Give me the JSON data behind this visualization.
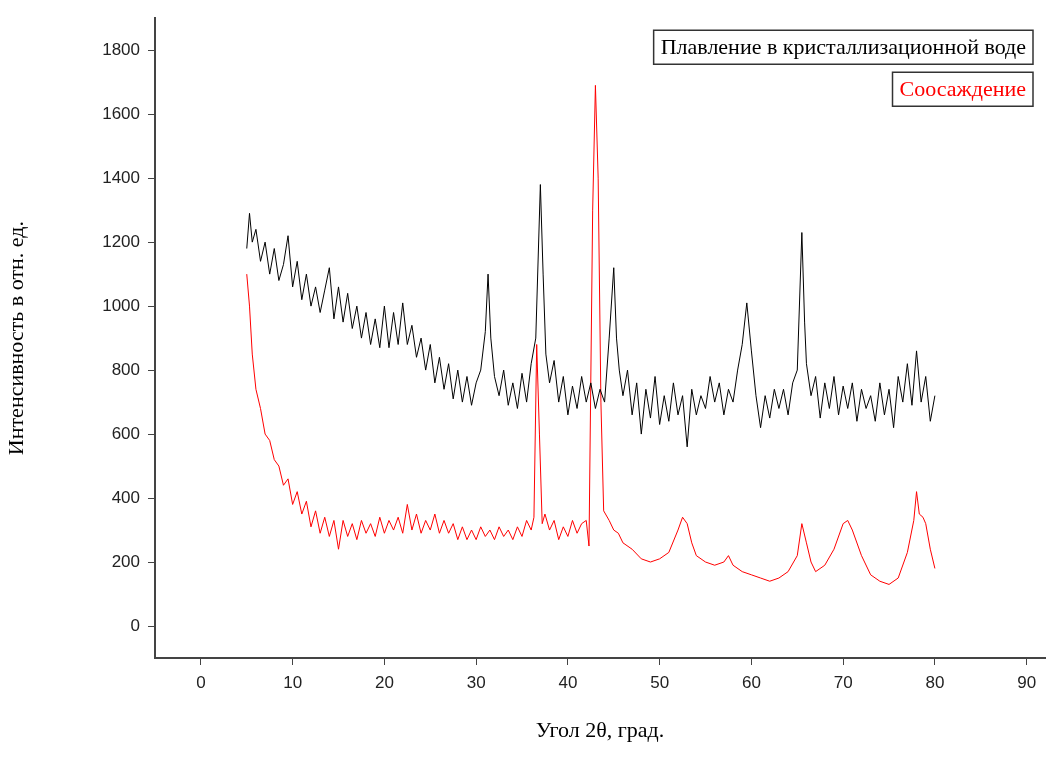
{
  "chart_data": {
    "type": "line",
    "xlabel": "Угол 2θ, град.",
    "ylabel": "Интенсивность в отн. ед.",
    "xlim": [
      -5,
      92
    ],
    "ylim": [
      -100,
      1900
    ],
    "xticks": [
      0,
      10,
      20,
      30,
      40,
      50,
      60,
      70,
      80,
      90
    ],
    "yticks": [
      0,
      200,
      400,
      600,
      800,
      1000,
      1200,
      1400,
      1600,
      1800
    ],
    "grid": false,
    "legend": "top right",
    "marker": "none",
    "line_style": "solid",
    "series": [
      {
        "name": "Плавление в кристаллизационной воде",
        "color": "#000000",
        "x": [
          5,
          5.3,
          5.6,
          6,
          6.5,
          7,
          7.5,
          8,
          8.5,
          9,
          9.5,
          10,
          10.5,
          11,
          11.5,
          12,
          12.5,
          13,
          13.5,
          14,
          14.5,
          15,
          15.5,
          16,
          16.5,
          17,
          17.5,
          18,
          18.5,
          19,
          19.5,
          20,
          20.5,
          21,
          21.5,
          22,
          22.5,
          23,
          23.5,
          24,
          24.5,
          25,
          25.5,
          26,
          26.5,
          27,
          27.5,
          28,
          28.5,
          29,
          29.5,
          30,
          30.5,
          31,
          31.3,
          31.6,
          32,
          32.5,
          33,
          33.5,
          34,
          34.5,
          35,
          35.5,
          36,
          36.5,
          37,
          37.3,
          37.6,
          38,
          38.5,
          39,
          39.5,
          40,
          40.5,
          41,
          41.5,
          42,
          42.5,
          43,
          43.5,
          44,
          44.5,
          45,
          45.3,
          45.6,
          46,
          46.5,
          47,
          47.5,
          48,
          48.5,
          49,
          49.5,
          50,
          50.5,
          51,
          51.5,
          52,
          52.5,
          53,
          53.5,
          54,
          54.5,
          55,
          55.5,
          56,
          56.5,
          57,
          57.5,
          58,
          58.5,
          59,
          59.5,
          60,
          60.5,
          61,
          61.5,
          62,
          62.5,
          63,
          63.5,
          64,
          64.5,
          65,
          65.5,
          65.8,
          66,
          66.5,
          67,
          67.5,
          68,
          68.5,
          69,
          69.5,
          70,
          70.5,
          71,
          71.5,
          72,
          72.5,
          73,
          73.5,
          74,
          74.5,
          75,
          75.5,
          76,
          76.5,
          77,
          77.5,
          78,
          78.5,
          79,
          79.5,
          80
        ],
        "values": [
          1180,
          1290,
          1200,
          1240,
          1140,
          1200,
          1100,
          1180,
          1080,
          1130,
          1220,
          1060,
          1140,
          1020,
          1100,
          1000,
          1060,
          980,
          1050,
          1120,
          960,
          1060,
          950,
          1040,
          930,
          1000,
          900,
          980,
          880,
          960,
          870,
          1000,
          870,
          980,
          880,
          1010,
          880,
          940,
          840,
          900,
          800,
          880,
          760,
          840,
          740,
          820,
          710,
          800,
          700,
          780,
          690,
          760,
          800,
          920,
          1100,
          900,
          780,
          720,
          800,
          690,
          760,
          680,
          790,
          700,
          820,
          900,
          1380,
          1100,
          850,
          760,
          830,
          700,
          780,
          660,
          750,
          680,
          780,
          700,
          760,
          680,
          740,
          700,
          900,
          1120,
          900,
          800,
          720,
          800,
          660,
          760,
          600,
          740,
          650,
          780,
          630,
          720,
          640,
          760,
          660,
          720,
          560,
          740,
          660,
          720,
          680,
          780,
          700,
          760,
          660,
          740,
          700,
          800,
          880,
          1010,
          860,
          720,
          620,
          720,
          650,
          740,
          680,
          740,
          660,
          760,
          800,
          1230,
          950,
          820,
          720,
          780,
          650,
          760,
          680,
          780,
          660,
          750,
          680,
          760,
          640,
          740,
          680,
          720,
          640,
          760,
          660,
          740,
          620,
          780,
          700,
          820,
          690,
          860,
          700,
          780,
          640,
          720
        ]
      },
      {
        "name": "Соосаждение",
        "color": "#ff0000",
        "x": [
          5,
          5.3,
          5.6,
          6,
          6.5,
          7,
          7.5,
          8,
          8.5,
          9,
          9.5,
          10,
          10.5,
          11,
          11.5,
          12,
          12.5,
          13,
          13.5,
          14,
          14.5,
          15,
          15.5,
          16,
          16.5,
          17,
          17.5,
          18,
          18.5,
          19,
          19.5,
          20,
          20.5,
          21,
          21.5,
          22,
          22.5,
          23,
          23.5,
          24,
          24.5,
          25,
          25.5,
          26,
          26.5,
          27,
          27.5,
          28,
          28.5,
          29,
          29.5,
          30,
          30.5,
          31,
          31.5,
          32,
          32.5,
          33,
          33.5,
          34,
          34.5,
          35,
          35.5,
          36,
          36.3,
          36.6,
          36.9,
          37.2,
          37.5,
          38,
          38.5,
          39,
          39.5,
          40,
          40.5,
          41,
          41.5,
          42,
          42.3,
          42.7,
          43,
          43.3,
          43.6,
          43.9,
          44.5,
          45,
          45.5,
          46,
          47,
          48,
          49,
          50,
          51,
          52,
          52.5,
          53,
          53.5,
          54,
          55,
          56,
          57,
          57.5,
          58,
          59,
          60,
          61,
          62,
          63,
          64,
          65,
          65.5,
          66,
          66.5,
          67,
          68,
          69,
          70,
          70.5,
          71,
          72,
          73,
          74,
          75,
          76,
          77,
          77.7,
          78,
          78.3,
          78.7,
          79,
          79.5,
          80
        ],
        "values": [
          1100,
          1000,
          850,
          740,
          680,
          600,
          580,
          520,
          500,
          440,
          460,
          380,
          420,
          350,
          390,
          310,
          360,
          290,
          340,
          280,
          330,
          240,
          330,
          280,
          320,
          270,
          330,
          290,
          320,
          280,
          340,
          290,
          330,
          300,
          340,
          290,
          380,
          300,
          350,
          290,
          330,
          300,
          350,
          290,
          330,
          290,
          320,
          270,
          310,
          270,
          300,
          270,
          310,
          280,
          300,
          270,
          310,
          280,
          300,
          270,
          310,
          280,
          330,
          300,
          340,
          880,
          600,
          320,
          350,
          300,
          330,
          270,
          310,
          280,
          330,
          290,
          320,
          330,
          250,
          1300,
          1690,
          1400,
          700,
          360,
          330,
          300,
          290,
          260,
          240,
          210,
          200,
          210,
          230,
          300,
          340,
          320,
          260,
          220,
          200,
          190,
          200,
          220,
          190,
          170,
          160,
          150,
          140,
          150,
          170,
          220,
          320,
          260,
          200,
          170,
          190,
          240,
          320,
          330,
          300,
          220,
          160,
          140,
          130,
          150,
          230,
          330,
          420,
          350,
          340,
          320,
          240,
          180
        ]
      }
    ]
  }
}
